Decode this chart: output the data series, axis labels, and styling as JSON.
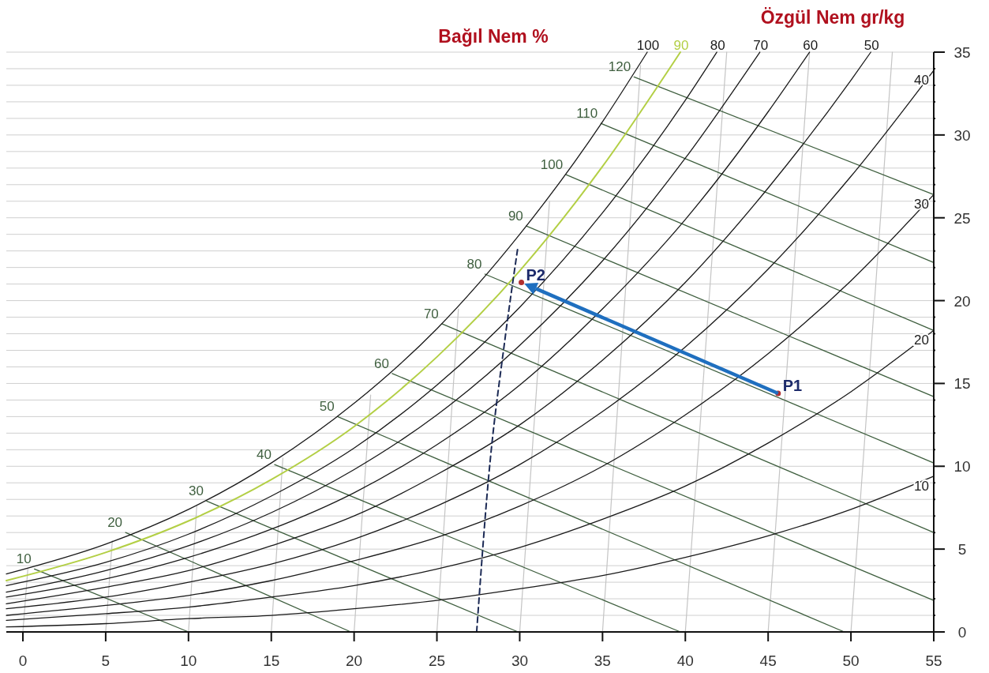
{
  "chart_data": {
    "type": "line",
    "ylabel": "Özgül Nem gr/kg",
    "annotations": [
      "Bağıl Nem %"
    ],
    "xlim": [
      -1,
      55
    ],
    "ylim": [
      0,
      35
    ],
    "xticks": [
      0,
      5,
      10,
      15,
      20,
      25,
      30,
      35,
      40,
      45,
      50,
      55
    ],
    "yticks": [
      0,
      {
        "value": 1,
        "label": null
      },
      {
        "value": 2,
        "label": null
      },
      {
        "value": 3,
        "label": null
      },
      {
        "value": 4,
        "label": null
      },
      5,
      {
        "value": 6,
        "label": null
      },
      {
        "value": 7,
        "label": null
      },
      {
        "value": 8,
        "label": null
      },
      {
        "value": 9,
        "label": null
      },
      10,
      {
        "value": 11,
        "label": null
      },
      {
        "value": 12,
        "label": null
      },
      {
        "value": 13,
        "label": null
      },
      {
        "value": 14,
        "label": null
      },
      15,
      {
        "value": 16,
        "label": null
      },
      {
        "value": 17,
        "label": null
      },
      {
        "value": 18,
        "label": null
      },
      {
        "value": 19,
        "label": null
      },
      20,
      {
        "value": 21,
        "label": null
      },
      {
        "value": 22,
        "label": null
      },
      {
        "value": 23,
        "label": null
      },
      {
        "value": 24,
        "label": null
      },
      25,
      {
        "value": 26,
        "label": null
      },
      {
        "value": 27,
        "label": null
      },
      {
        "value": 28,
        "label": null
      },
      {
        "value": 29,
        "label": null
      },
      30,
      {
        "value": 31,
        "label": null
      },
      {
        "value": 32,
        "label": null
      },
      {
        "value": 33,
        "label": null
      },
      {
        "value": 34,
        "label": null
      },
      35
    ],
    "grid": "y",
    "series": [
      {
        "color": "#c4c4c4",
        "x": [
          0,
          0.3
        ],
        "values": [
          0,
          3.8
        ]
      },
      {
        "color": "#c4c4c4",
        "x": [
          5,
          5.4
        ],
        "values": [
          0,
          5.5
        ]
      },
      {
        "color": "#c4c4c4",
        "x": [
          10,
          10.5
        ],
        "values": [
          0,
          7.6
        ]
      },
      {
        "color": "#c4c4c4",
        "x": [
          15,
          15.7
        ],
        "values": [
          0,
          10.5
        ]
      },
      {
        "color": "#c4c4c4",
        "x": [
          20,
          21
        ],
        "values": [
          0,
          14.3
        ]
      },
      {
        "color": "#c4c4c4",
        "x": [
          25,
          26.3
        ],
        "values": [
          0,
          19.5
        ]
      },
      {
        "color": "#c4c4c4",
        "x": [
          30,
          31.8
        ],
        "values": [
          0,
          26
        ]
      },
      {
        "color": "#c4c4c4",
        "x": [
          35,
          37.3
        ],
        "values": [
          0,
          34.2
        ]
      },
      {
        "color": "#c4c4c4",
        "x": [
          40,
          42.5
        ],
        "values": [
          0,
          35
        ]
      },
      {
        "color": "#c4c4c4",
        "x": [
          45,
          47.5
        ],
        "values": [
          0,
          35
        ]
      },
      {
        "color": "#c4c4c4",
        "x": [
          50,
          52.5
        ],
        "values": [
          0,
          35
        ]
      },
      {
        "name": "10",
        "color": "#3f5f3f",
        "x": [
          0.7,
          10
        ],
        "values": [
          3.8,
          0
        ]
      },
      {
        "name": "20",
        "color": "#3f5f3f",
        "x": [
          6.2,
          19.8
        ],
        "values": [
          6,
          0
        ]
      },
      {
        "name": "30",
        "color": "#3f5f3f",
        "x": [
          11.1,
          29.9
        ],
        "values": [
          7.9,
          0
        ]
      },
      {
        "name": "40",
        "color": "#3f5f3f",
        "x": [
          15.2,
          39.7
        ],
        "values": [
          10.1,
          0
        ]
      },
      {
        "name": "50",
        "color": "#3f5f3f",
        "x": [
          19,
          49.6
        ],
        "values": [
          13,
          0
        ]
      },
      {
        "name": "60",
        "color": "#3f5f3f",
        "x": [
          22.3,
          55
        ],
        "values": [
          15.6,
          1.9
        ]
      },
      {
        "name": "70",
        "color": "#3f5f3f",
        "x": [
          25.3,
          55
        ],
        "values": [
          18.6,
          6
        ]
      },
      {
        "name": "80",
        "color": "#3f5f3f",
        "x": [
          27.9,
          55
        ],
        "values": [
          21.6,
          10.2
        ]
      },
      {
        "name": "90",
        "color": "#3f5f3f",
        "x": [
          30.4,
          55
        ],
        "values": [
          24.5,
          14.2
        ]
      },
      {
        "name": "100",
        "color": "#3f5f3f",
        "x": [
          32.8,
          55
        ],
        "values": [
          27.6,
          18.2
        ]
      },
      {
        "name": "110",
        "color": "#3f5f3f",
        "x": [
          34.9,
          55
        ],
        "values": [
          30.7,
          22.3
        ]
      },
      {
        "name": "120",
        "color": "#3f5f3f",
        "x": [
          36.9,
          55
        ],
        "values": [
          33.5,
          26.4
        ]
      },
      {
        "name": "100",
        "color": "#1a1a1a",
        "x": [
          -1,
          5,
          10,
          15,
          20,
          25,
          30,
          35,
          37.7
        ],
        "values": [
          3.5,
          5.3,
          7.4,
          10.2,
          13.8,
          18.3,
          24,
          30.8,
          35
        ]
      },
      {
        "name": "90",
        "color": "#b3cf45",
        "x": [
          -1,
          5,
          10,
          15,
          20,
          25,
          30,
          35,
          39.7
        ],
        "values": [
          3.1,
          4.8,
          6.7,
          9.2,
          12.4,
          16.6,
          21.8,
          28.1,
          35
        ]
      },
      {
        "name": "80",
        "color": "#1a1a1a",
        "x": [
          -1,
          5,
          10,
          15,
          20,
          25,
          30,
          35,
          40,
          41.9
        ],
        "values": [
          2.8,
          4.2,
          5.9,
          8.2,
          11.1,
          14.9,
          19.6,
          25.3,
          32.1,
          35
        ]
      },
      {
        "name": "70",
        "color": "#1a1a1a",
        "x": [
          -1,
          5,
          10,
          15,
          20,
          25,
          30,
          35,
          40,
          44.5
        ],
        "values": [
          2.4,
          3.7,
          5.2,
          7.2,
          9.8,
          13.1,
          17.3,
          22.4,
          28.6,
          35
        ]
      },
      {
        "name": "60",
        "color": "#1a1a1a",
        "x": [
          -1,
          5,
          10,
          15,
          20,
          25,
          30,
          35,
          40,
          45,
          47.5
        ],
        "values": [
          2.1,
          3.2,
          4.5,
          6.2,
          8.4,
          11.3,
          14.9,
          19.5,
          24.9,
          31.4,
          35
        ]
      },
      {
        "name": "50",
        "color": "#1a1a1a",
        "x": [
          -1,
          5,
          10,
          15,
          20,
          25,
          30,
          35,
          40,
          45,
          50,
          51.2
        ],
        "values": [
          1.7,
          2.7,
          3.7,
          5.2,
          7,
          9.5,
          12.5,
          16.4,
          21.1,
          26.8,
          33.3,
          35
        ]
      },
      {
        "name": "40",
        "color": "#1a1a1a",
        "x": [
          -1,
          5,
          10,
          15,
          20,
          25,
          30,
          35,
          40,
          45,
          50,
          55
        ],
        "values": [
          1.4,
          2.1,
          3,
          4.1,
          5.6,
          7.6,
          10.1,
          13.3,
          17.2,
          21.9,
          27.5,
          33.9
        ]
      },
      {
        "name": "30",
        "color": "#1a1a1a",
        "x": [
          -1,
          5,
          10,
          15,
          20,
          25,
          30,
          35,
          40,
          45,
          50,
          55
        ],
        "values": [
          1,
          1.6,
          2.2,
          3.1,
          4.3,
          5.7,
          7.6,
          10,
          13.1,
          16.8,
          21.2,
          26.4
        ]
      },
      {
        "name": "20",
        "color": "#1a1a1a",
        "x": [
          -1,
          5,
          10,
          15,
          20,
          25,
          30,
          35,
          40,
          45,
          50,
          55
        ],
        "values": [
          0.7,
          1.1,
          1.5,
          2.1,
          2.8,
          3.8,
          5.1,
          6.8,
          8.8,
          11.4,
          14.5,
          18.2
        ]
      },
      {
        "name": "10",
        "color": "#1a1a1a",
        "x": [
          -1,
          5,
          10,
          15,
          20,
          25,
          30,
          35,
          40,
          45,
          50,
          55
        ],
        "values": [
          0.3,
          0.5,
          0.8,
          1,
          1.4,
          1.9,
          2.6,
          3.4,
          4.5,
          5.8,
          7.4,
          9.4
        ]
      },
      {
        "color": "#1c2a55",
        "line_style": "dashed",
        "x": [
          27.4,
          28.1,
          29.1,
          29.9
        ],
        "values": [
          0,
          9.1,
          17.6,
          23.3
        ]
      },
      {
        "name": "P1",
        "type": "scatter",
        "marker": "circle",
        "color": "#b03030",
        "x": [
          45.6
        ],
        "values": [
          14.4
        ]
      },
      {
        "name": "P2",
        "type": "scatter",
        "marker": "circle",
        "color": "#b03030",
        "x": [
          30.1
        ],
        "values": [
          21.1
        ]
      }
    ]
  }
}
